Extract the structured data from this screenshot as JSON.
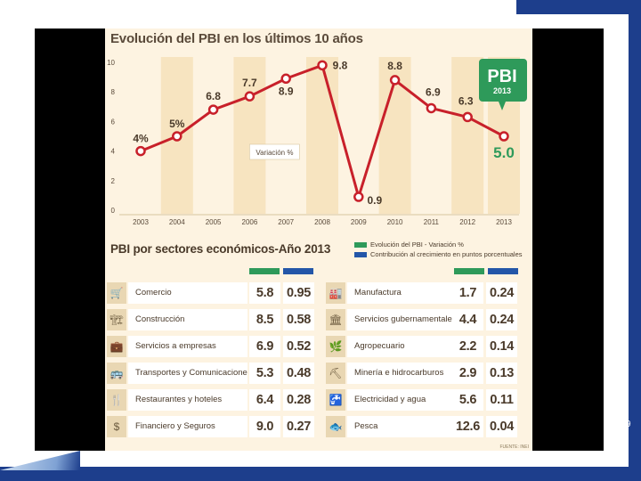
{
  "slide": {
    "number": "9"
  },
  "chart_data": [
    {
      "type": "line",
      "title": "Evolución del PBI en los últimos 10 años",
      "x": [
        "2003",
        "2004",
        "2005",
        "2006",
        "2007",
        "2008",
        "2009",
        "2010",
        "2011",
        "2012",
        "2013"
      ],
      "series": [
        {
          "name": "Variación %",
          "values": [
            4.0,
            5.0,
            6.8,
            7.7,
            8.9,
            9.8,
            0.9,
            8.8,
            6.9,
            6.3,
            5.0
          ]
        }
      ],
      "point_labels": [
        "4%",
        "5%",
        "6.8",
        "7.7",
        "8.9",
        "9.8",
        "0.9",
        "8.8",
        "6.9",
        "6.3",
        "5.0"
      ],
      "y_ticks": [
        "0",
        "2",
        "4",
        "6",
        "8",
        "10"
      ],
      "ylim": [
        0,
        10
      ],
      "series_label": "Variación %",
      "badge": {
        "main": "PBI",
        "year": "2013"
      },
      "colors": {
        "line": "#c8202a",
        "bands": "#f7e4c0",
        "highlight": "#2e9a5a",
        "background": "#fdf3e1"
      }
    },
    {
      "type": "table",
      "title": "PBI por sectores económicos-Año 2013",
      "legend": [
        "Evolución del PBI - Variación %",
        "Contribución al crecimiento en puntos porcentuales"
      ],
      "legend_colors": [
        "#2e9a5a",
        "#2356a8"
      ],
      "left": [
        {
          "icon": "cart-icon",
          "glyph": "🛒",
          "sector": "Comercio",
          "variacion": "5.8",
          "contribucion": "0.95"
        },
        {
          "icon": "building-icon",
          "glyph": "🏗",
          "sector": "Construcción",
          "variacion": "8.5",
          "contribucion": "0.58"
        },
        {
          "icon": "briefcase-icon",
          "glyph": "💼",
          "sector": "Servicios a empresas",
          "variacion": "6.9",
          "contribucion": "0.52"
        },
        {
          "icon": "bus-icon",
          "glyph": "🚌",
          "sector": "Transportes y Comunicaciones",
          "variacion": "5.3",
          "contribucion": "0.48"
        },
        {
          "icon": "utensils-icon",
          "glyph": "🍴",
          "sector": "Restaurantes y hoteles",
          "variacion": "6.4",
          "contribucion": "0.28"
        },
        {
          "icon": "dollar-icon",
          "glyph": "$",
          "sector": "Financiero y Seguros",
          "variacion": "9.0",
          "contribucion": "0.27"
        }
      ],
      "right": [
        {
          "icon": "factory-icon",
          "glyph": "🏭",
          "sector": "Manufactura",
          "variacion": "1.7",
          "contribucion": "0.24"
        },
        {
          "icon": "government-icon",
          "glyph": "🏛",
          "sector": "Servicios gubernamentales",
          "variacion": "4.4",
          "contribucion": "0.24"
        },
        {
          "icon": "leaf-icon",
          "glyph": "🌿",
          "sector": "Agropecuario",
          "variacion": "2.2",
          "contribucion": "0.14"
        },
        {
          "icon": "mining-icon",
          "glyph": "⛏",
          "sector": "Minería e hidrocarburos",
          "variacion": "2.9",
          "contribucion": "0.13"
        },
        {
          "icon": "faucet-icon",
          "glyph": "🚰",
          "sector": "Electricidad y agua",
          "variacion": "5.6",
          "contribucion": "0.11"
        },
        {
          "icon": "fish-icon",
          "glyph": "🐟",
          "sector": "Pesca",
          "variacion": "12.6",
          "contribucion": "0.04"
        }
      ],
      "source": "FUENTE: INEI"
    }
  ]
}
